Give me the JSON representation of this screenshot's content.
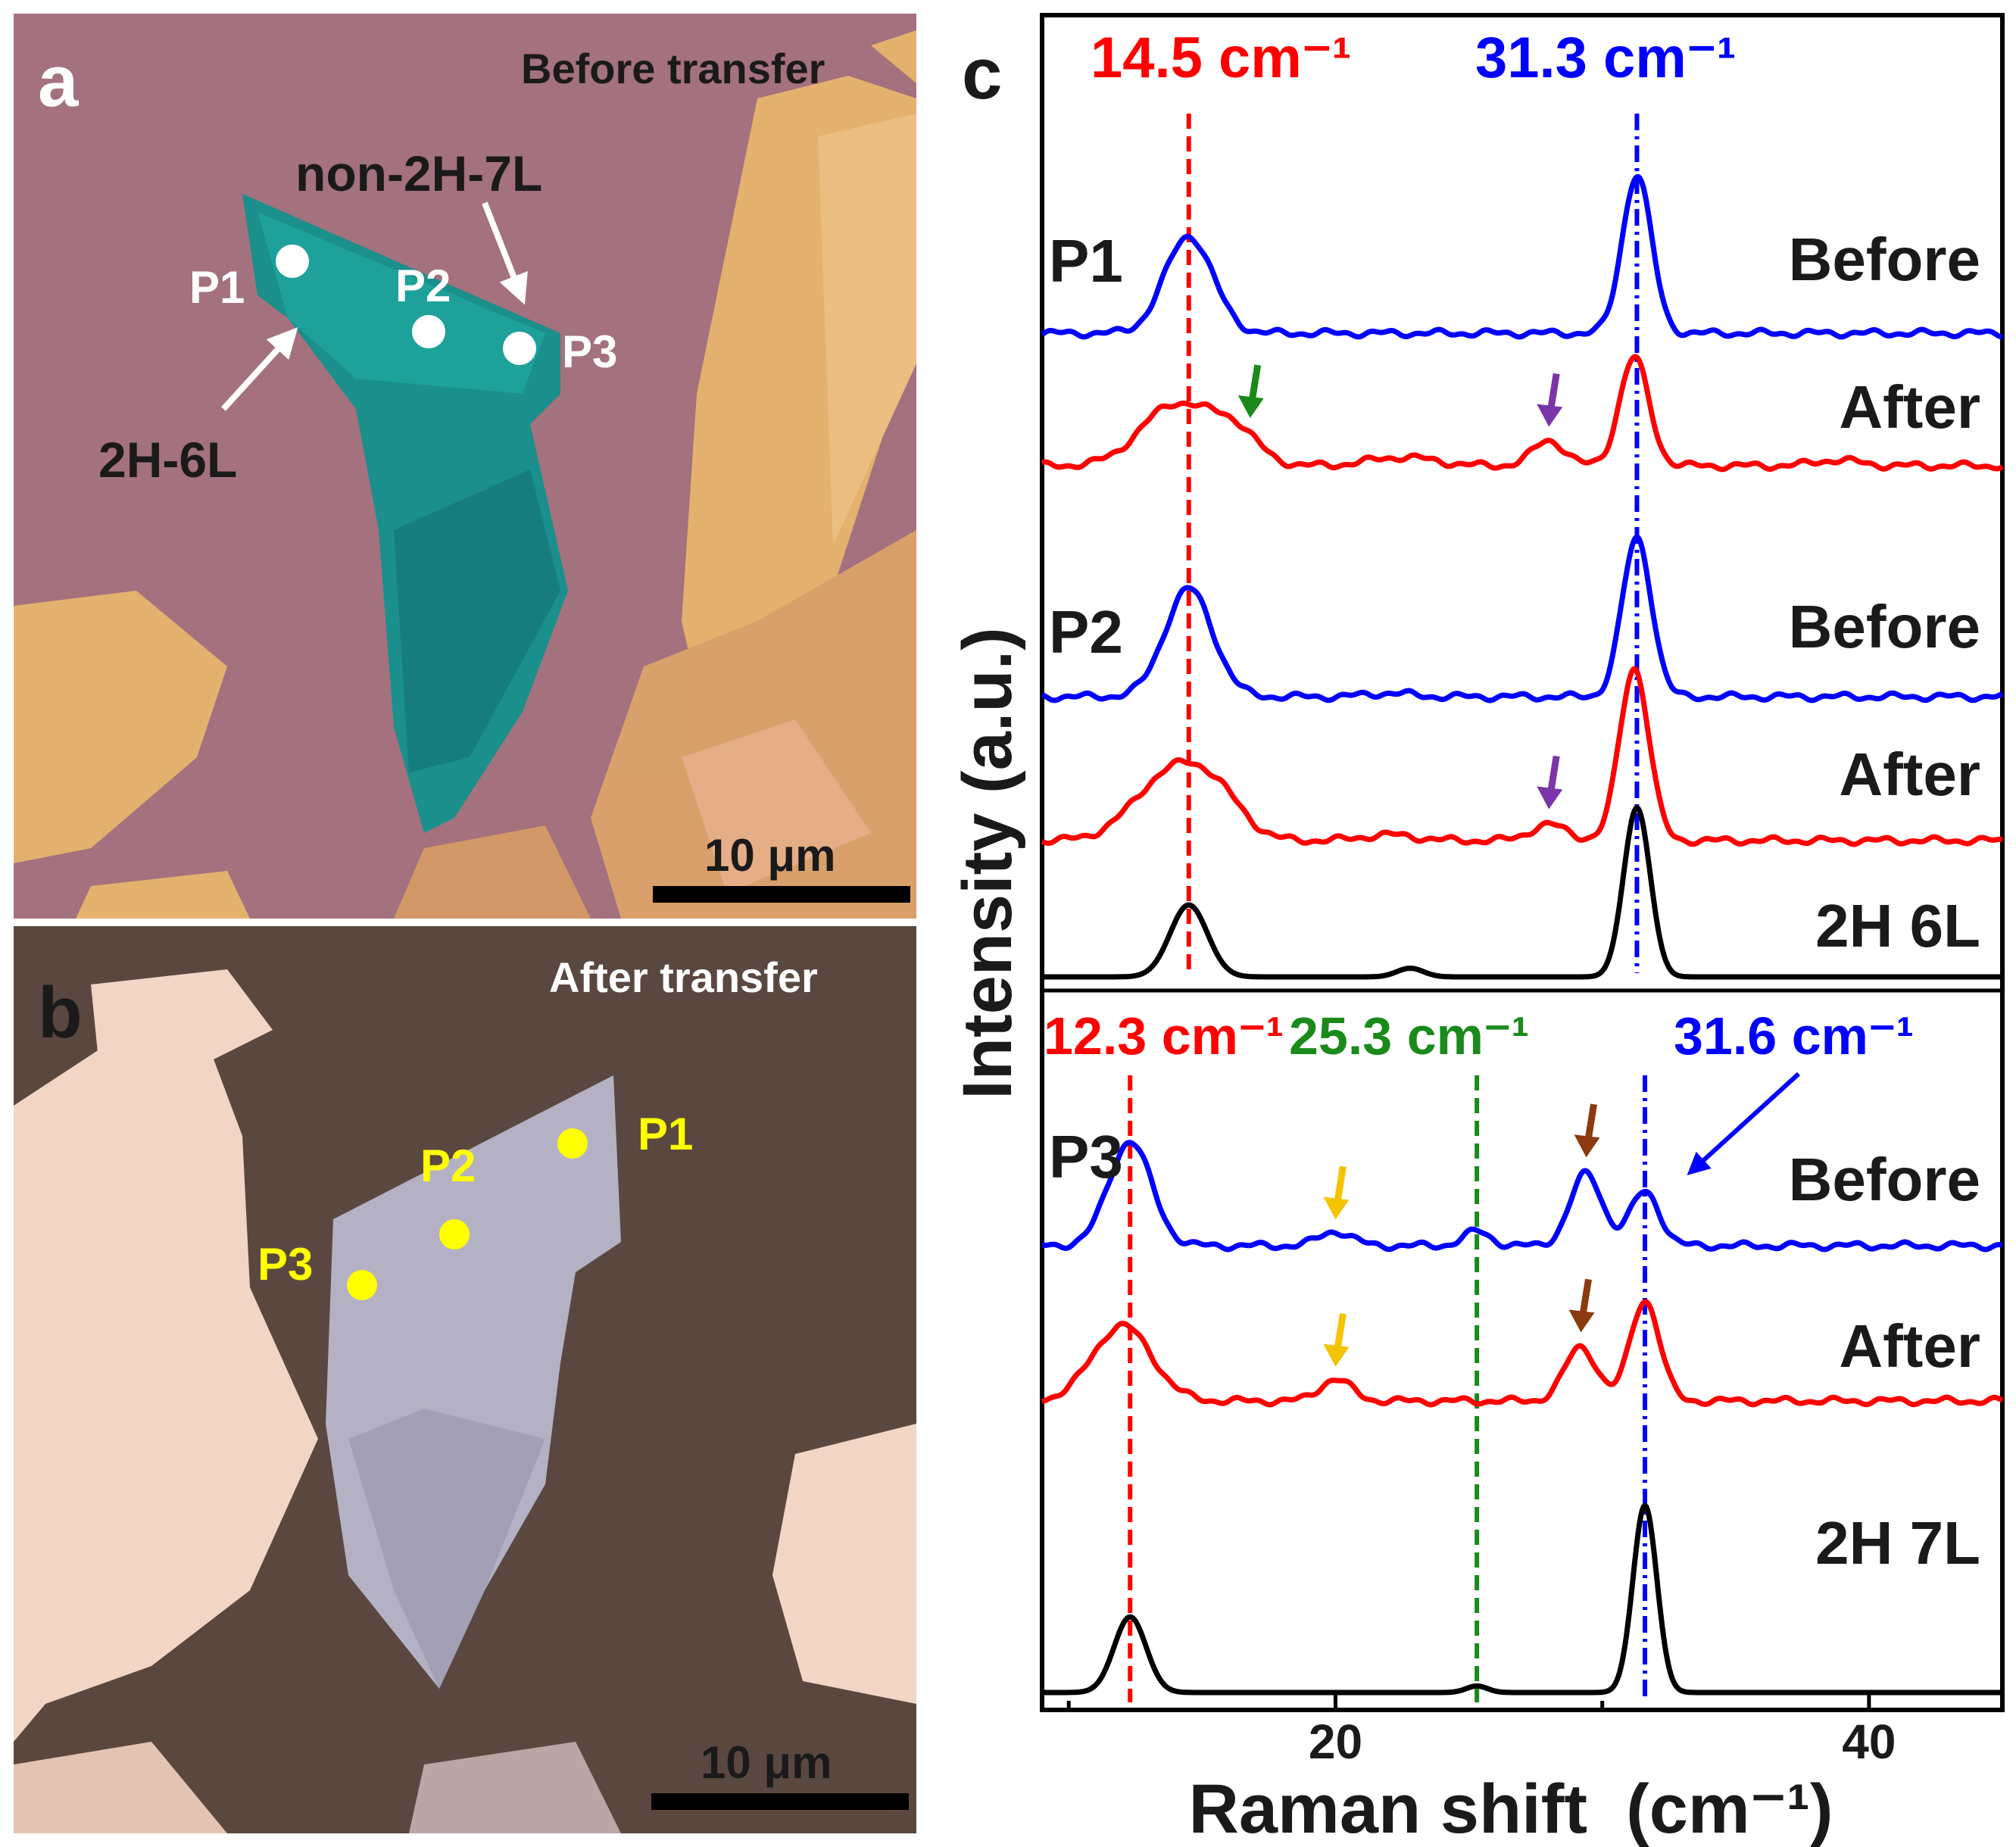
{
  "panel_a": {
    "letter": "a",
    "caption": "Before transfer",
    "label_non2h": "non-2H-7L",
    "label_2h": "2H-6L",
    "points": [
      "P1",
      "P2",
      "P3"
    ],
    "scalebar": "10 μm"
  },
  "panel_b": {
    "letter": "b",
    "caption": "After transfer",
    "points": [
      "P1",
      "P2",
      "P3"
    ],
    "scalebar": "10 μm"
  },
  "panel_c": {
    "letter": "c",
    "peak_labels": [
      "14.5 cm⁻¹",
      "31.3 cm⁻¹",
      "12.3 cm⁻¹",
      "25.3 cm⁻¹",
      "31.6 cm⁻¹"
    ],
    "point_labels": [
      "P1",
      "P2",
      "P3"
    ]
  },
  "colors": {
    "before": "#0000ff",
    "after": "#ff0000",
    "reference": "#000000",
    "green": "#1a8a1a",
    "purple": "#7a35a8",
    "yellow": "#f5c400",
    "brown": "#8b3a10"
  },
  "chart_data": {
    "type": "line",
    "xlabel": "Raman shift  (cm⁻¹)",
    "ylabel": "Intensity (a.u.)",
    "xlim": [
      9,
      45
    ],
    "xticks": [
      20,
      40
    ],
    "xtick_labels": [
      "20",
      "40"
    ],
    "vlines": [
      {
        "x": 14.5,
        "label": "14.5 cm⁻¹",
        "color": "#ff0000",
        "group": "P1-P2"
      },
      {
        "x": 31.3,
        "label": "31.3 cm⁻¹",
        "color": "#0000ff",
        "group": "P1-P2"
      },
      {
        "x": 12.3,
        "label": "12.3 cm⁻¹",
        "color": "#ff0000",
        "group": "P3"
      },
      {
        "x": 25.3,
        "label": "25.3 cm⁻¹",
        "color": "#1a8a1a",
        "group": "P3"
      },
      {
        "x": 31.6,
        "label": "31.6 cm⁻¹",
        "color": "#0000ff",
        "group": "P3"
      }
    ],
    "series": [
      {
        "name": "Before",
        "point": "P1",
        "color": "#0000ff",
        "peaks": [
          {
            "x": 14.5,
            "h": 1.35,
            "w": 0.9
          },
          {
            "x": 31.3,
            "h": 2.2,
            "w": 0.55
          }
        ]
      },
      {
        "name": "After",
        "point": "P1",
        "color": "#ff0000",
        "peaks": [
          {
            "x": 14.0,
            "h": 0.85,
            "w": 1.3
          },
          {
            "x": 16.2,
            "h": 0.45,
            "w": 0.9
          },
          {
            "x": 22.5,
            "h": 0.12,
            "w": 1.2
          },
          {
            "x": 28.0,
            "h": 0.35,
            "w": 0.6
          },
          {
            "x": 31.2,
            "h": 1.5,
            "w": 0.55
          },
          {
            "x": 38.8,
            "h": 0.08,
            "w": 0.8
          }
        ]
      },
      {
        "name": "Before",
        "point": "P2",
        "color": "#0000ff",
        "peaks": [
          {
            "x": 14.5,
            "h": 1.5,
            "w": 0.9
          },
          {
            "x": 22.0,
            "h": 0.05,
            "w": 0.8
          },
          {
            "x": 31.3,
            "h": 2.2,
            "w": 0.55
          }
        ]
      },
      {
        "name": "After",
        "point": "P2",
        "color": "#ff0000",
        "peaks": [
          {
            "x": 13.9,
            "h": 0.95,
            "w": 1.4
          },
          {
            "x": 15.6,
            "h": 0.4,
            "w": 1.0
          },
          {
            "x": 22.0,
            "h": 0.08,
            "w": 1.0
          },
          {
            "x": 28.0,
            "h": 0.22,
            "w": 0.7
          },
          {
            "x": 31.2,
            "h": 2.4,
            "w": 0.55
          }
        ]
      },
      {
        "name": "2H 6L",
        "point": "P2",
        "color": "#000000",
        "peaks": [
          {
            "x": 14.5,
            "h": 1.0,
            "w": 0.7
          },
          {
            "x": 22.8,
            "h": 0.12,
            "w": 0.5
          },
          {
            "x": 31.3,
            "h": 2.35,
            "w": 0.5
          }
        ]
      },
      {
        "name": "Before",
        "point": "P3",
        "color": "#0000ff",
        "peaks": [
          {
            "x": 12.3,
            "h": 1.45,
            "w": 0.8
          },
          {
            "x": 20.0,
            "h": 0.2,
            "w": 0.6
          },
          {
            "x": 25.3,
            "h": 0.2,
            "w": 0.5
          },
          {
            "x": 29.4,
            "h": 1.0,
            "w": 0.6
          },
          {
            "x": 31.6,
            "h": 0.75,
            "w": 0.55
          }
        ]
      },
      {
        "name": "After",
        "point": "P3",
        "color": "#ff0000",
        "peaks": [
          {
            "x": 12.0,
            "h": 1.05,
            "w": 1.1
          },
          {
            "x": 20.0,
            "h": 0.3,
            "w": 0.6
          },
          {
            "x": 29.2,
            "h": 0.75,
            "w": 0.6
          },
          {
            "x": 31.6,
            "h": 1.4,
            "w": 0.55
          }
        ]
      },
      {
        "name": "2H 7L",
        "point": "P3",
        "color": "#000000",
        "peaks": [
          {
            "x": 12.3,
            "h": 1.05,
            "w": 0.6
          },
          {
            "x": 25.3,
            "h": 0.09,
            "w": 0.4
          },
          {
            "x": 31.6,
            "h": 2.6,
            "w": 0.45
          }
        ]
      }
    ],
    "arrows": [
      {
        "x": 16.8,
        "series_index": 1,
        "color": "#1a8a1a"
      },
      {
        "x": 28.0,
        "series_index": 1,
        "color": "#7a35a8"
      },
      {
        "x": 28.0,
        "series_index": 3,
        "color": "#7a35a8"
      },
      {
        "x": 20.0,
        "series_index": 5,
        "color": "#f5c400"
      },
      {
        "x": 29.4,
        "series_index": 5,
        "color": "#8b3a10"
      },
      {
        "x": 20.0,
        "series_index": 6,
        "color": "#f5c400"
      },
      {
        "x": 29.2,
        "series_index": 6,
        "color": "#8b3a10"
      }
    ]
  }
}
